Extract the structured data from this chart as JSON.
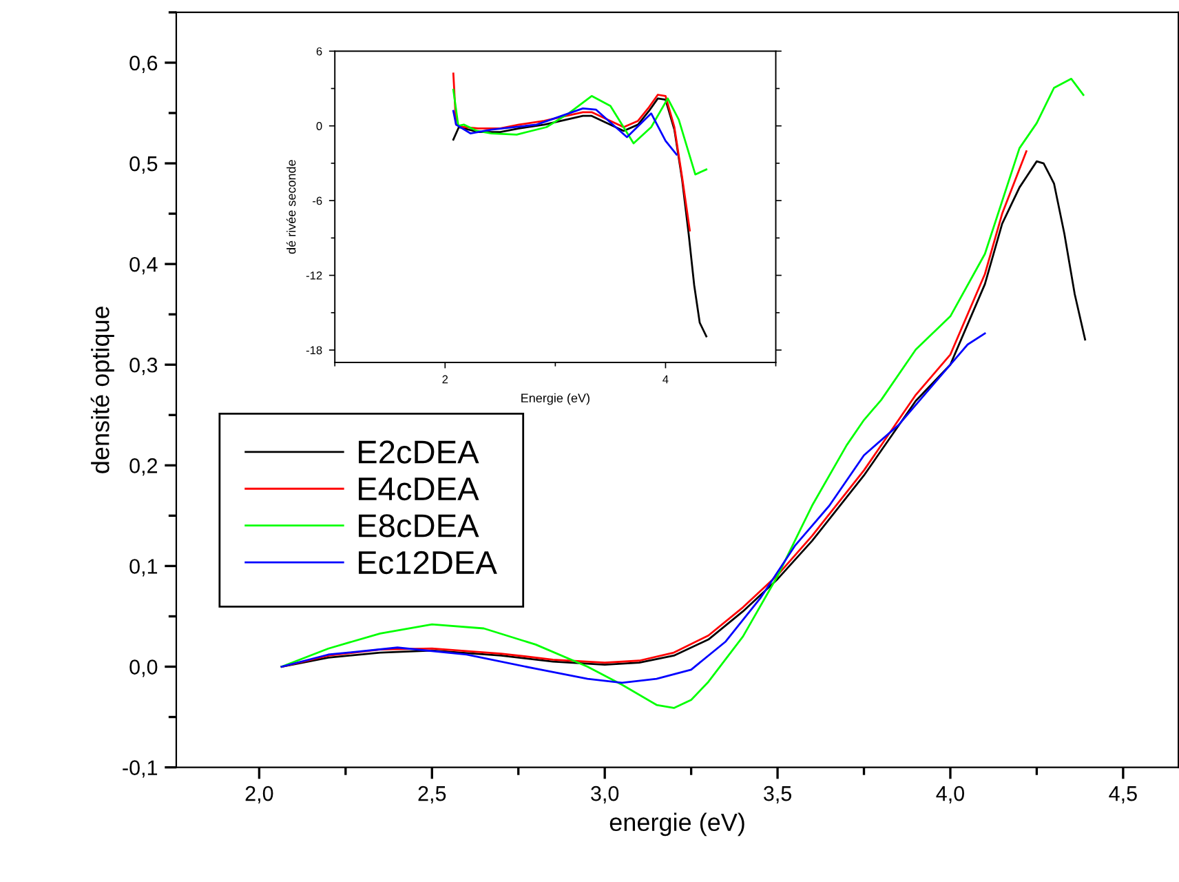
{
  "chart_data": [
    {
      "type": "line",
      "xlabel": "energie (eV)",
      "ylabel": "densité optique",
      "xlim": [
        1.76,
        4.66
      ],
      "ylim": [
        -0.1,
        0.65
      ],
      "xticks": [
        {
          "value": 2.0,
          "label": "2,0"
        },
        {
          "value": 2.5,
          "label": "2,5"
        },
        {
          "value": 3.0,
          "label": "3,0"
        },
        {
          "value": 3.5,
          "label": "3,5"
        },
        {
          "value": 4.0,
          "label": "4,0"
        },
        {
          "value": 4.5,
          "label": "4,5"
        }
      ],
      "yticks": [
        {
          "value": -0.1,
          "label": "-0,1"
        },
        {
          "value": 0.0,
          "label": "0,0"
        },
        {
          "value": 0.1,
          "label": "0,1"
        },
        {
          "value": 0.2,
          "label": "0,2"
        },
        {
          "value": 0.3,
          "label": "0,3"
        },
        {
          "value": 0.4,
          "label": "0,4"
        },
        {
          "value": 0.5,
          "label": "0,5"
        },
        {
          "value": 0.6,
          "label": "0,6"
        }
      ],
      "grid": false,
      "legend": "left",
      "marker": "none",
      "line_style": "solid",
      "series": [
        {
          "name": "E2cDEA",
          "color": "#000000",
          "x": [
            2.065,
            2.2,
            2.35,
            2.5,
            2.7,
            2.85,
            3.0,
            3.1,
            3.2,
            3.3,
            3.4,
            3.5,
            3.6,
            3.75,
            3.9,
            4.0,
            4.1,
            4.15,
            4.2,
            4.25,
            4.27,
            4.3,
            4.33,
            4.36,
            4.39
          ],
          "values": [
            0,
            0.009,
            0.014,
            0.016,
            0.011,
            0.005,
            0.002,
            0.004,
            0.011,
            0.027,
            0.055,
            0.087,
            0.125,
            0.19,
            0.264,
            0.3,
            0.38,
            0.44,
            0.476,
            0.502,
            0.5,
            0.48,
            0.43,
            0.37,
            0.325
          ]
        },
        {
          "name": "E4cDEA",
          "color": "#ff0000",
          "x": [
            2.065,
            2.2,
            2.35,
            2.5,
            2.7,
            2.85,
            3.0,
            3.1,
            3.2,
            3.3,
            3.4,
            3.5,
            3.6,
            3.75,
            3.9,
            4.0,
            4.1,
            4.15,
            4.22
          ],
          "values": [
            0,
            0.011,
            0.017,
            0.018,
            0.013,
            0.007,
            0.004,
            0.006,
            0.014,
            0.031,
            0.059,
            0.091,
            0.13,
            0.195,
            0.27,
            0.31,
            0.39,
            0.45,
            0.512
          ]
        },
        {
          "name": "E8cDEA",
          "color": "#00ff00",
          "x": [
            2.065,
            2.2,
            2.35,
            2.5,
            2.65,
            2.8,
            2.95,
            3.05,
            3.15,
            3.2,
            3.25,
            3.3,
            3.4,
            3.5,
            3.6,
            3.7,
            3.75,
            3.8,
            3.9,
            4.0,
            4.1,
            4.2,
            4.25,
            4.3,
            4.35,
            4.385
          ],
          "values": [
            0,
            0.018,
            0.033,
            0.042,
            0.038,
            0.022,
            0.0,
            -0.018,
            -0.038,
            -0.041,
            -0.033,
            -0.015,
            0.03,
            0.09,
            0.16,
            0.22,
            0.245,
            0.265,
            0.315,
            0.348,
            0.41,
            0.515,
            0.54,
            0.575,
            0.584,
            0.568
          ]
        },
        {
          "name": "Ec12DEA",
          "color": "#0000ff",
          "x": [
            2.065,
            2.2,
            2.4,
            2.6,
            2.8,
            2.95,
            3.05,
            3.15,
            3.25,
            3.35,
            3.45,
            3.55,
            3.65,
            3.75,
            3.85,
            3.95,
            4.05,
            4.1
          ],
          "values": [
            0,
            0.012,
            0.019,
            0.012,
            -0.002,
            -0.012,
            -0.016,
            -0.012,
            -0.003,
            0.025,
            0.068,
            0.12,
            0.16,
            0.21,
            0.24,
            0.28,
            0.32,
            0.331
          ]
        }
      ]
    },
    {
      "type": "line",
      "xlabel": "Energie (eV)",
      "ylabel": "dé rivée seconde",
      "xlim": [
        1,
        5
      ],
      "ylim": [
        -19,
        6
      ],
      "xticks": [
        2,
        4
      ],
      "yticks": [
        -18,
        -12,
        -6,
        0,
        6
      ],
      "grid": false,
      "marker": "none",
      "line_style": "solid",
      "series": [
        {
          "color": "#000000",
          "x": [
            2.075,
            2.125,
            2.3,
            2.5,
            2.67,
            2.9,
            3.1,
            3.25,
            3.33,
            3.45,
            3.62,
            3.75,
            3.85,
            3.93,
            4.0,
            4.08,
            4.15,
            4.21,
            4.26,
            4.31,
            4.37
          ],
          "values": [
            -1.1,
            -0.1,
            -0.5,
            -0.5,
            -0.2,
            0.1,
            0.5,
            0.8,
            0.8,
            0.3,
            -0.4,
            0.1,
            1.2,
            2.2,
            2.1,
            -0.3,
            -4.3,
            -8.7,
            -12.8,
            -15.8,
            -16.9
          ]
        },
        {
          "color": "#ff0000",
          "x": [
            2.075,
            2.1,
            2.17,
            2.3,
            2.5,
            2.67,
            2.9,
            3.1,
            3.25,
            3.33,
            3.45,
            3.62,
            3.75,
            3.85,
            3.93,
            4.0,
            4.08,
            4.15,
            4.22
          ],
          "values": [
            4.2,
            0.1,
            -0.1,
            -0.2,
            -0.2,
            0.1,
            0.4,
            0.8,
            1.1,
            1.1,
            0.6,
            -0.1,
            0.4,
            1.5,
            2.5,
            2.4,
            -0.1,
            -4.1,
            -8.4
          ]
        },
        {
          "color": "#00ff00",
          "x": [
            2.075,
            2.12,
            2.17,
            2.29,
            2.42,
            2.65,
            2.92,
            3.12,
            3.33,
            3.5,
            3.71,
            3.87,
            4.02,
            4.12,
            4.27,
            4.37
          ],
          "values": [
            2.9,
            0,
            0.1,
            -0.4,
            -0.6,
            -0.7,
            -0.1,
            1.0,
            2.4,
            1.6,
            -1.4,
            -0.1,
            2.2,
            0.5,
            -3.9,
            -3.5
          ]
        },
        {
          "color": "#0000ff",
          "x": [
            2.075,
            2.1,
            2.23,
            2.42,
            2.83,
            3.25,
            3.37,
            3.65,
            3.87,
            4.0,
            4.1
          ],
          "values": [
            1.2,
            0.1,
            -0.6,
            -0.3,
            0.1,
            1.4,
            1.3,
            -0.9,
            1.0,
            -1.2,
            -2.3
          ]
        }
      ]
    }
  ]
}
